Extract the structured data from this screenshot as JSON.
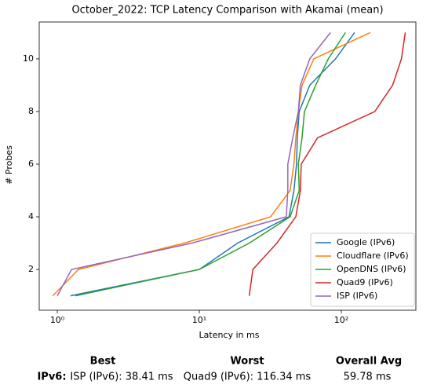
{
  "chart_data": {
    "type": "line",
    "title": "October_2022: TCP Latency Comparison with Akamai (mean)",
    "xlabel": "Latency in ms",
    "ylabel": "# Probes",
    "xscale": "log",
    "xlim": [
      0.746,
      335
    ],
    "ylim": [
      0.45,
      11.4
    ],
    "xticks": [
      {
        "value": 1,
        "label": "10⁰"
      },
      {
        "value": 10,
        "label": "10¹"
      },
      {
        "value": 100,
        "label": "10²"
      }
    ],
    "yticks": [
      2,
      4,
      6,
      8,
      10
    ],
    "legend": "lower right",
    "series": [
      {
        "name": "Google (IPv6)",
        "color": "#1f77b4",
        "x": [
          1.24,
          10,
          18.6,
          42.8,
          46.4,
          48.4,
          49,
          50.5,
          60,
          91,
          124
        ],
        "values": [
          1,
          2,
          3,
          4,
          5,
          6,
          7,
          8,
          9,
          10,
          11
        ]
      },
      {
        "name": "Cloudflare (IPv6)",
        "color": "#ff7f0e",
        "x": [
          0.93,
          1.41,
          7.86,
          31.8,
          43.6,
          46.4,
          47.8,
          49.8,
          52.9,
          64,
          160
        ],
        "values": [
          1,
          2,
          3,
          4,
          5,
          6,
          7,
          8,
          9,
          10,
          11
        ]
      },
      {
        "name": "OpenDNS (IPv6)",
        "color": "#2ca02c",
        "x": [
          1.34,
          10,
          22.5,
          43.6,
          50.5,
          49.8,
          52.9,
          55,
          66,
          81,
          107
        ],
        "values": [
          1,
          2,
          3,
          4,
          5,
          6,
          7,
          8,
          9,
          10,
          11
        ]
      },
      {
        "name": "Quad9 (IPv6)",
        "color": "#d62728",
        "x": [
          22.5,
          23.8,
          35.2,
          47.8,
          51.5,
          52.2,
          68,
          172,
          230,
          265,
          282
        ],
        "values": [
          1,
          2,
          3,
          4,
          5,
          6,
          7,
          8,
          9,
          10,
          11
        ]
      },
      {
        "name": "ISP (IPv6)",
        "color": "#9467bd",
        "x": [
          1,
          1.26,
          8.9,
          41,
          42,
          42,
          45.5,
          49.8,
          51.5,
          60,
          84
        ],
        "values": [
          1,
          2,
          3,
          4,
          5,
          6,
          7,
          8,
          9,
          10,
          11
        ]
      }
    ]
  },
  "summary": {
    "headers": [
      "Best",
      "Worst",
      "Overall Avg"
    ],
    "row_label": "IPv6:",
    "cells": [
      "ISP (IPv6): 38.41 ms",
      "Quad9 (IPv6): 116.34 ms",
      "59.78 ms"
    ]
  }
}
